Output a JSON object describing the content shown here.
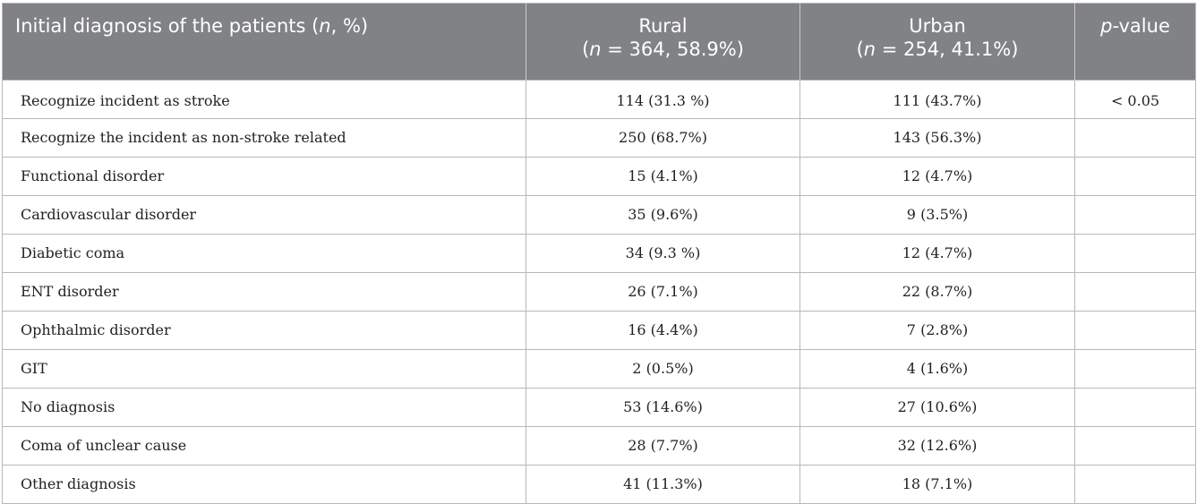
{
  "header": {
    "col1_prefix": "Initial diagnosis of the patients (",
    "col1_n": "n",
    "col1_suffix": ", %)",
    "col2_title": "Rural",
    "col2_open": "(",
    "col2_n": "n",
    "col2_rest": " = 364, 58.9%)",
    "col3_title": "Urban",
    "col3_open": "(",
    "col3_n": "n",
    "col3_rest": " = 254, 41.1%)",
    "col4_p": "p",
    "col4_rest": "-value"
  },
  "rows": [
    {
      "label": "Recognize incident as stroke",
      "rural": "114 (31.3 %)",
      "urban": "111 (43.7%)",
      "p": "< 0.05"
    },
    {
      "label": "Recognize the incident as non-stroke related",
      "rural": "250 (68.7%)",
      "urban": "143 (56.3%)",
      "p": ""
    },
    {
      "label": "Functional disorder",
      "rural": "15 (4.1%)",
      "urban": "12 (4.7%)",
      "p": ""
    },
    {
      "label": "Cardiovascular disorder",
      "rural": "35 (9.6%)",
      "urban": "9 (3.5%)",
      "p": ""
    },
    {
      "label": "Diabetic coma",
      "rural": "34 (9.3 %)",
      "urban": "12 (4.7%)",
      "p": ""
    },
    {
      "label": "ENT disorder",
      "rural": "26 (7.1%)",
      "urban": "22 (8.7%)",
      "p": ""
    },
    {
      "label": "Ophthalmic disorder",
      "rural": "16 (4.4%)",
      "urban": "7 (2.8%)",
      "p": ""
    },
    {
      "label": "GIT",
      "rural": "2 (0.5%)",
      "urban": "4 (1.6%)",
      "p": ""
    },
    {
      "label": "No diagnosis",
      "rural": "53 (14.6%)",
      "urban": "27 (10.6%)",
      "p": ""
    },
    {
      "label": "Coma of unclear cause",
      "rural": "28 (7.7%)",
      "urban": "32 (12.6%)",
      "p": ""
    },
    {
      "label": "Other diagnosis",
      "rural": "41 (11.3%)",
      "urban": "18 (7.1%)",
      "p": ""
    }
  ]
}
